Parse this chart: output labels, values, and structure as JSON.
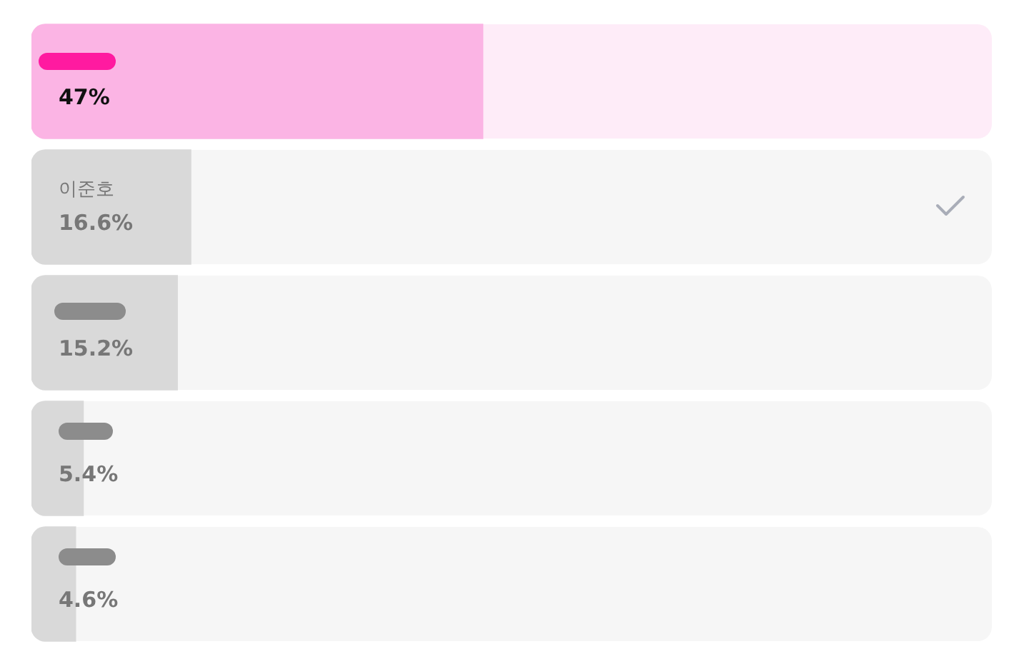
{
  "chart_data": {
    "type": "bar",
    "orientation": "horizontal",
    "categories": [
      null,
      "이준호",
      null,
      null,
      null
    ],
    "values": [
      47,
      16.6,
      15.2,
      5.4,
      4.6
    ],
    "colors": [
      "#fbb4e4",
      "#d9d9d9",
      "#d9d9d9",
      "#d9d9d9",
      "#d9d9d9"
    ],
    "value_labels": [
      "47%",
      "16.6%",
      "15.2%",
      "5.4%",
      "4.6%"
    ],
    "xlim": [
      0,
      100
    ],
    "tick_labels": false,
    "legend": false
  }
}
